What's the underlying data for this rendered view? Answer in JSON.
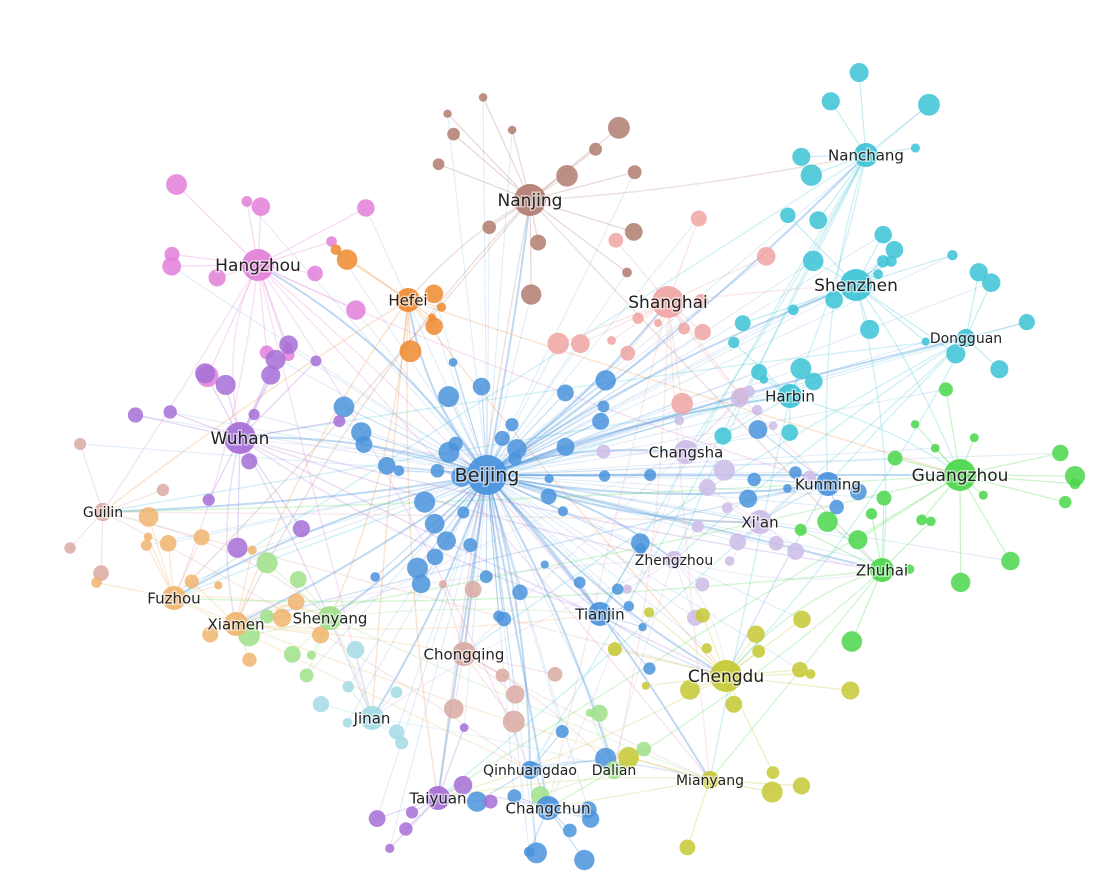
{
  "colors": {
    "blue": "#4a93dc",
    "brown": "#b27c70",
    "pink": "#e27fd8",
    "orange": "#ee8a30",
    "salmon": "#f0a5a2",
    "cyan": "#3cc3d6",
    "green": "#4ad64a",
    "purple": "#a56ed6",
    "yellow": "#c6c832",
    "peach": "#f0b46e",
    "lavender": "#cdbce6",
    "rose": "#d9a9a2",
    "lightcyan": "#a3dbe4",
    "lightgreen": "#9fe08a"
  },
  "nodes": [
    {
      "label": "Beijing",
      "color": "blue",
      "size": "xl"
    },
    {
      "label": "Nanjing",
      "color": "brown",
      "size": "l"
    },
    {
      "label": "Hangzhou",
      "color": "pink",
      "size": "l"
    },
    {
      "label": "Hefei",
      "color": "orange",
      "size": "m"
    },
    {
      "label": "Shanghai",
      "color": "salmon",
      "size": "l"
    },
    {
      "label": "Nanchang",
      "color": "cyan",
      "size": "m"
    },
    {
      "label": "Shenzhen",
      "color": "cyan",
      "size": "l"
    },
    {
      "label": "Dongguan",
      "color": "cyan",
      "size": "s"
    },
    {
      "label": "Harbin",
      "color": "cyan",
      "size": "m"
    },
    {
      "label": "Changsha",
      "color": "lavender",
      "size": "m"
    },
    {
      "label": "Kunming",
      "color": "blue",
      "size": "m"
    },
    {
      "label": "Guangzhou",
      "color": "green",
      "size": "l"
    },
    {
      "label": "Wuhan",
      "color": "purple",
      "size": "l"
    },
    {
      "label": "Guilin",
      "color": "rose",
      "size": "s"
    },
    {
      "label": "Xi'an",
      "color": "lavender",
      "size": "m"
    },
    {
      "label": "Zhengzhou",
      "color": "lavender",
      "size": "s"
    },
    {
      "label": "Zhuhai",
      "color": "green",
      "size": "m"
    },
    {
      "label": "Fuzhou",
      "color": "peach",
      "size": "m"
    },
    {
      "label": "Xiamen",
      "color": "peach",
      "size": "m"
    },
    {
      "label": "Shenyang",
      "color": "lightgreen",
      "size": "m"
    },
    {
      "label": "Tianjin",
      "color": "blue",
      "size": "m"
    },
    {
      "label": "Chongqing",
      "color": "rose",
      "size": "m"
    },
    {
      "label": "Chengdu",
      "color": "yellow",
      "size": "l"
    },
    {
      "label": "Jinan",
      "color": "lightcyan",
      "size": "m"
    },
    {
      "label": "Qinhuangdao",
      "color": "blue",
      "size": "s"
    },
    {
      "label": "Dalian",
      "color": "lightgreen",
      "size": "s"
    },
    {
      "label": "Mianyang",
      "color": "yellow",
      "size": "s"
    },
    {
      "label": "Taiyuan",
      "color": "purple",
      "size": "m"
    },
    {
      "label": "Changchun",
      "color": "blue",
      "size": "m"
    }
  ]
}
